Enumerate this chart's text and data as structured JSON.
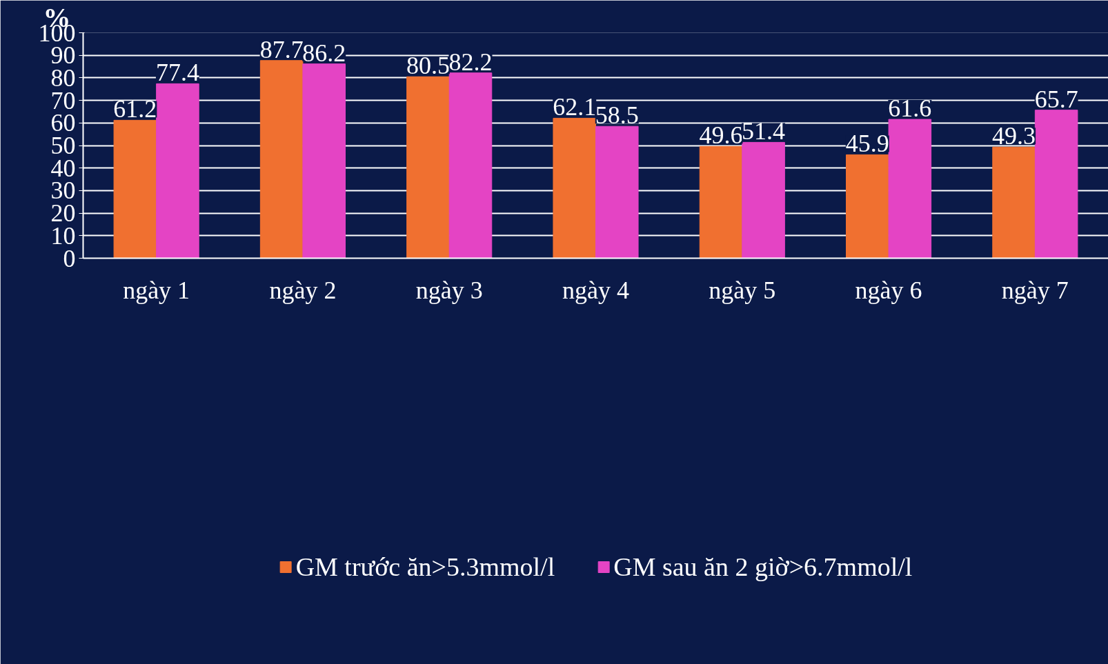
{
  "chart_data": {
    "type": "bar",
    "ylabel": "%",
    "categories": [
      "ngày 1",
      "ngày 2",
      "ngày 3",
      "ngày 4",
      "ngày 5",
      "ngày 6",
      "ngày 7"
    ],
    "series": [
      {
        "name": "GM trước ăn>5.3mmol/l",
        "color": "#f07030",
        "values": [
          61.2,
          87.7,
          80.5,
          62.1,
          49.6,
          45.9,
          49.3
        ]
      },
      {
        "name": "GM sau ăn 2 giờ>6.7mmol/l",
        "color": "#e444c4",
        "values": [
          77.4,
          86.2,
          82.2,
          58.5,
          51.4,
          61.6,
          65.7
        ]
      }
    ],
    "ylim": [
      0,
      100
    ],
    "yticks": [
      0,
      10,
      20,
      30,
      40,
      50,
      60,
      70,
      80,
      90,
      100
    ],
    "grid": "y",
    "legend": "bottom",
    "data_labels": true
  }
}
